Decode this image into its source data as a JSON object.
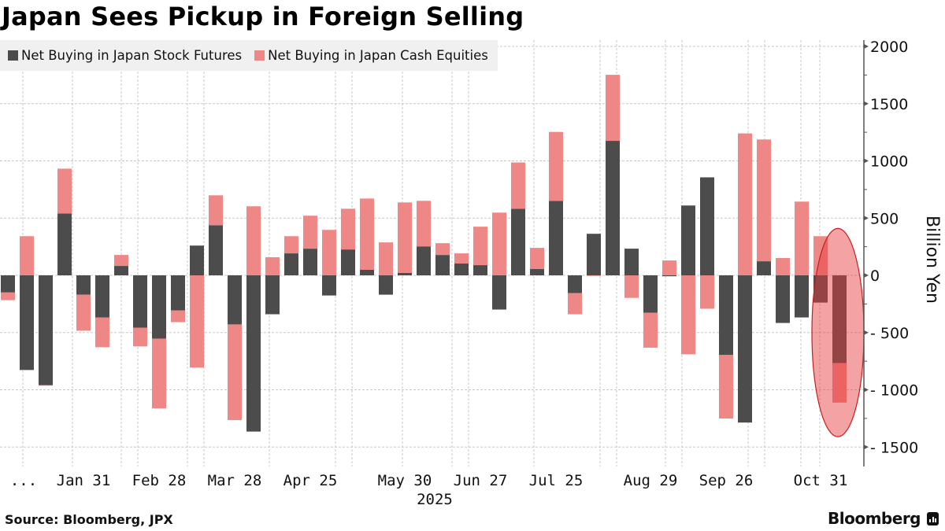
{
  "header": {
    "title": "Japan Sees Pickup in Foreign Selling"
  },
  "legend": {
    "items": [
      {
        "label": "Net Buying in Japan Stock Futures",
        "color": "#4c4c4c"
      },
      {
        "label": "Net Buying in Japan Cash Equities",
        "color": "#ee8886"
      }
    ]
  },
  "footer": {
    "source": "Source: Bloomberg, JPX",
    "brand": "Bloomberg"
  },
  "highlight": {
    "color": "#e63c3c",
    "stroke": "#c81e1e",
    "category_index": 44,
    "y_center": -500,
    "y_span": [
      -1410,
      410
    ]
  },
  "chart_data": {
    "type": "bar",
    "stacked": true,
    "title": "Japan Sees Pickup in Foreign Selling",
    "xlabel": "2025",
    "ylabel": "Billion Yen",
    "ylim": [
      -1680,
      2080
    ],
    "yticks": [
      2000,
      1500,
      1000,
      500,
      0,
      -500,
      -1000,
      -1500
    ],
    "grid": true,
    "legend_position": "top-left",
    "axis_side": "right",
    "x_tick_labels": [
      {
        "label": "...",
        "index": 1
      },
      {
        "label": "Jan 31",
        "index": 4
      },
      {
        "label": "Feb 28",
        "index": 8
      },
      {
        "label": "Mar 28",
        "index": 12
      },
      {
        "label": "Apr 25",
        "index": 16
      },
      {
        "label": "May 30",
        "index": 21
      },
      {
        "label": "Jun 27",
        "index": 25
      },
      {
        "label": "Jul 25",
        "index": 29
      },
      {
        "label": "Aug 29",
        "index": 34
      },
      {
        "label": "Sep 26",
        "index": 38
      },
      {
        "label": "Oct 31",
        "index": 43
      }
    ],
    "year_label": {
      "label": "2025",
      "index": 22
    },
    "series": [
      {
        "name": "Net Buying in Japan Stock Futures",
        "color": "#4c4c4c",
        "values": [
          -150,
          -827,
          -959,
          541,
          -169,
          -368,
          82,
          -457,
          -553,
          -306,
          260,
          438,
          -429,
          -1365,
          -340,
          192,
          233,
          -176,
          226,
          48,
          -169,
          21,
          253,
          178,
          103,
          89,
          -299,
          582,
          55,
          651,
          -155,
          363,
          1175,
          233,
          -327,
          -8,
          610,
          856,
          -696,
          -1286,
          123,
          -416,
          -368,
          -238,
          -767
        ]
      },
      {
        "name": "Net Buying in Japan Cash Equities",
        "color": "#ee8886",
        "values": [
          -67,
          342,
          -5,
          391,
          -315,
          -260,
          96,
          -164,
          -609,
          -103,
          -806,
          261,
          -836,
          603,
          158,
          150,
          288,
          397,
          356,
          623,
          288,
          616,
          398,
          103,
          89,
          336,
          548,
          404,
          185,
          602,
          -185,
          -5,
          577,
          -197,
          -305,
          130,
          -690,
          -292,
          -555,
          1240,
          1064,
          151,
          644,
          342,
          -345
        ]
      }
    ]
  }
}
